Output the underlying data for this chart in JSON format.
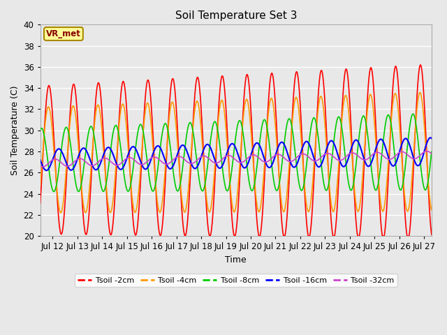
{
  "title": "Soil Temperature Set 3",
  "xlabel": "Time",
  "ylabel": "Soil Temperature (C)",
  "ylim": [
    20,
    40
  ],
  "xlim_days": [
    11.5,
    27.3
  ],
  "xtick_days": [
    12,
    13,
    14,
    15,
    16,
    17,
    18,
    19,
    20,
    21,
    22,
    23,
    24,
    25,
    26,
    27
  ],
  "xtick_labels": [
    "Jul 12",
    "Jul 13",
    "Jul 14",
    "Jul 15",
    "Jul 16",
    "Jul 17",
    "Jul 18",
    "Jul 19",
    "Jul 20",
    "Jul 21",
    "Jul 22",
    "Jul 23",
    "Jul 24",
    "Jul 25",
    "Jul 26",
    "Jul 27"
  ],
  "ytick_vals": [
    20,
    22,
    24,
    26,
    28,
    30,
    32,
    34,
    36,
    38,
    40
  ],
  "colors": {
    "Tsoil -2cm": "#ff0000",
    "Tsoil -4cm": "#ff9900",
    "Tsoil -8cm": "#00cc00",
    "Tsoil -16cm": "#0000ff",
    "Tsoil -32cm": "#cc44cc"
  },
  "bg_color": "#e8e8e8",
  "grid_color": "#ffffff",
  "annotation_text": "VR_met",
  "annotation_box_color": "#ffff99",
  "annotation_border_color": "#aa8800"
}
